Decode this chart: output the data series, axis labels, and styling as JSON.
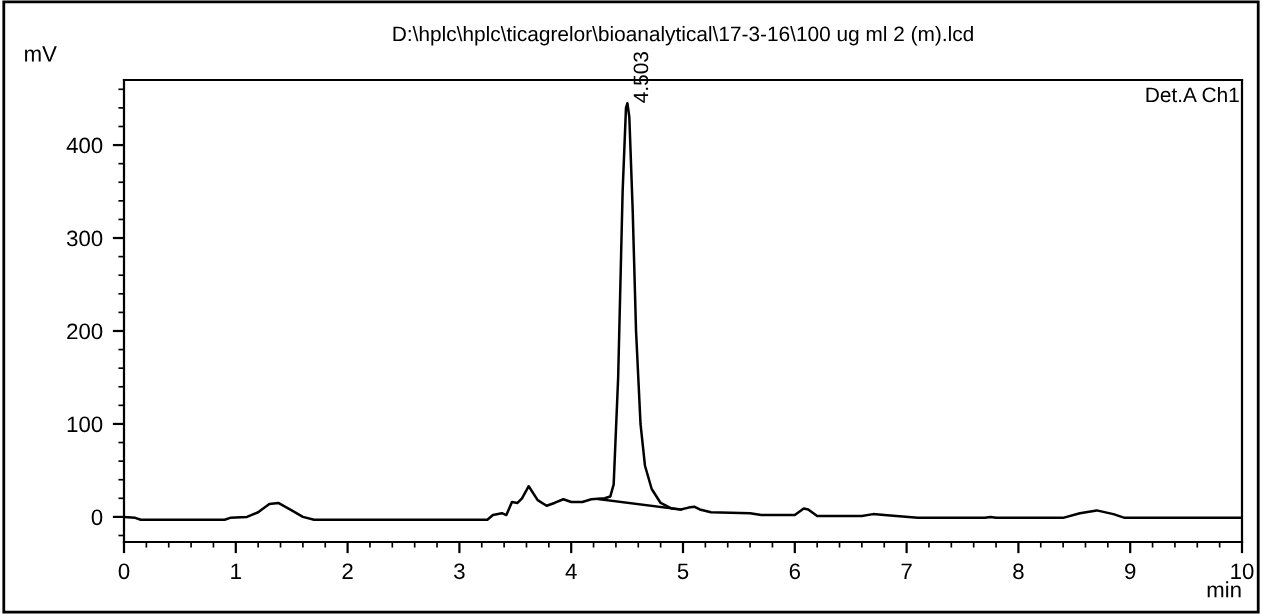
{
  "chart_data": {
    "type": "line",
    "title": "D:\\hplc\\hplc\\ticagrelor\\bioanalytical\\17-3-16\\100 ug ml 2 (m).lcd",
    "xlabel": "min",
    "ylabel": "mV",
    "xlim": [
      0,
      10
    ],
    "ylim": [
      -27,
      470
    ],
    "xticks": [
      0,
      1,
      2,
      3,
      4,
      5,
      6,
      7,
      8,
      9,
      10
    ],
    "yticks": [
      0,
      100,
      200,
      300,
      400
    ],
    "grid": false,
    "legend": false,
    "series": [
      {
        "color": "#000000",
        "x": [
          0,
          0.1,
          0.15,
          0.9,
          0.95,
          1.1,
          1.2,
          1.3,
          1.38,
          1.5,
          1.6,
          1.7,
          3.25,
          3.3,
          3.38,
          3.42,
          3.47,
          3.52,
          3.56,
          3.62,
          3.7,
          3.78,
          3.85,
          3.93,
          4.0,
          4.1,
          4.18,
          4.3,
          4.35,
          4.38,
          4.42,
          4.46,
          4.49,
          4.503,
          4.52,
          4.55,
          4.58,
          4.62,
          4.66,
          4.72,
          4.8,
          4.9,
          4.98,
          5.05,
          5.1,
          5.15,
          5.25,
          5.6,
          5.7,
          6.0,
          6.08,
          6.12,
          6.2,
          6.6,
          6.7,
          6.8,
          7.1,
          7.7,
          7.75,
          7.8,
          8.4,
          8.55,
          8.7,
          8.85,
          8.95,
          10
        ],
        "values": [
          0,
          -1,
          -3,
          -3,
          -1,
          0,
          5,
          14,
          15,
          7,
          0,
          -3,
          -3,
          2,
          4,
          2,
          16,
          15,
          20,
          33,
          18,
          12,
          15,
          19,
          16,
          16,
          19,
          20,
          22,
          35,
          150,
          350,
          440,
          445,
          430,
          330,
          200,
          100,
          55,
          30,
          15,
          9,
          8,
          10,
          11,
          8,
          5,
          4,
          2,
          2,
          9,
          8,
          1,
          1,
          3,
          2,
          -1,
          -1,
          0,
          -1,
          -1,
          4,
          7,
          3,
          -1,
          -1
        ]
      },
      {
        "color": "#000000",
        "x": [
          4.25,
          4.98
        ],
        "values": [
          19,
          8
        ]
      }
    ],
    "annotations": [
      {
        "text": "4.503",
        "x": 4.503,
        "y": 445
      },
      "Det.A Ch1"
    ]
  }
}
